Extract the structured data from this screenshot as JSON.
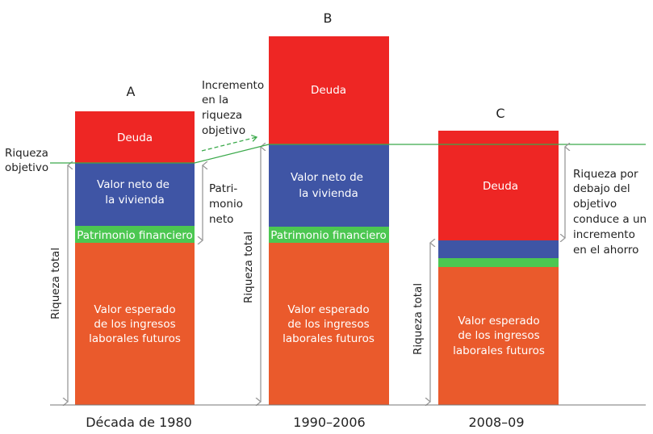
{
  "colors": {
    "debt": "#ee2624",
    "housing": "#3f55a5",
    "financial": "#4cc751",
    "labor": "#ea5a2c",
    "target_line": "#3aa94a",
    "arrow": "#999999"
  },
  "bars": [
    {
      "id": "A",
      "period": "Década de 1980",
      "debt": "Deuda",
      "housing": [
        "Valor neto de",
        "la vivienda"
      ],
      "financial": "Patrimonio financiero",
      "labor": [
        "Valor esperado",
        "de los ingresos",
        "laborales futuros"
      ],
      "total": "Riqueza total"
    },
    {
      "id": "B",
      "period": "1990–2006",
      "debt": "Deuda",
      "housing": [
        "Valor neto de",
        "la vivienda"
      ],
      "financial": "Patrimonio financiero",
      "labor": [
        "Valor esperado",
        "de los ingresos",
        "laborales futuros"
      ],
      "total": "Riqueza total"
    },
    {
      "id": "C",
      "period": "2008–09",
      "debt": "Deuda",
      "labor": [
        "Valor esperado",
        "de los ingresos",
        "laborales futuros"
      ],
      "total": "Riqueza total"
    }
  ],
  "annotations": {
    "target": [
      "Riqueza",
      "objetivo"
    ],
    "increase": [
      "Incremento",
      "en la",
      "riqueza",
      "objetivo"
    ],
    "net_worth": [
      "Patri-",
      "monio",
      "neto"
    ],
    "below_target": [
      "Riqueza por",
      "debajo del",
      "objetivo",
      "conduce a un",
      "incremento",
      "en el ahorro"
    ]
  }
}
